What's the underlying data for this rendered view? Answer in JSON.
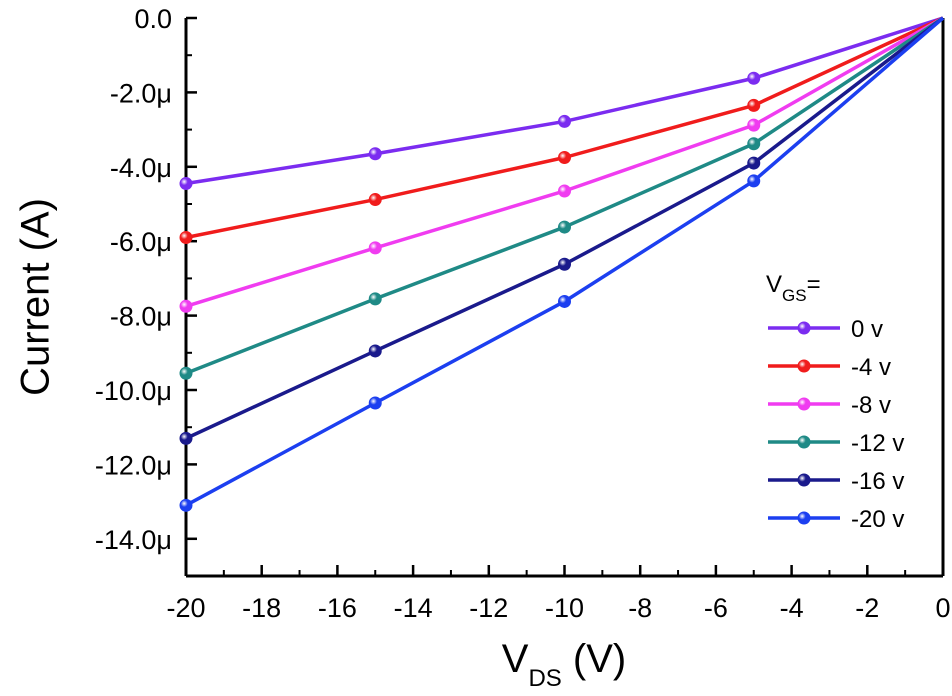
{
  "chart_data": {
    "type": "line",
    "xlabel_main": "V",
    "xlabel_sub": "DS",
    "xlabel_unit": " (V)",
    "ylabel": "Current (A)",
    "xlim": [
      -20,
      0
    ],
    "ylim": [
      -15.0,
      0.0
    ],
    "grid": false,
    "legend_position": "lower-right",
    "legend_title_main": "V",
    "legend_title_sub": "GS",
    "legend_title_suffix": "=",
    "x": [
      -20,
      -15,
      -10,
      -5,
      0
    ],
    "x_ticks": [
      -20,
      -18,
      -16,
      -14,
      -12,
      -10,
      -8,
      -6,
      -4,
      -2,
      0
    ],
    "x_tick_labels": [
      "-20",
      "-18",
      "-16",
      "-14",
      "-12",
      "-10",
      "-8",
      "-6",
      "-4",
      "-2",
      "0"
    ],
    "y_ticks": [
      0.0,
      -2.0,
      -4.0,
      -6.0,
      -8.0,
      -10.0,
      -12.0,
      -14.0
    ],
    "y_tick_labels": [
      "0.0",
      "-2.0μ",
      "-4.0μ",
      "-6.0μ",
      "-8.0μ",
      "-10.0μ",
      "-12.0μ",
      "-14.0μ"
    ],
    "y_unit": "μA",
    "series": [
      {
        "name": "0 v",
        "color": "#7b2cf0",
        "values": [
          -4.45,
          -3.65,
          -2.78,
          -1.62,
          0.0
        ]
      },
      {
        "name": "-4 v",
        "color": "#f01c1c",
        "values": [
          -5.9,
          -4.88,
          -3.75,
          -2.35,
          0.0
        ]
      },
      {
        "name": "-8 v",
        "color": "#f03cf0",
        "values": [
          -7.75,
          -6.18,
          -4.65,
          -2.88,
          0.0
        ]
      },
      {
        "name": "-12 v",
        "color": "#1f8a86",
        "values": [
          -9.55,
          -7.55,
          -5.62,
          -3.38,
          0.0
        ]
      },
      {
        "name": "-16 v",
        "color": "#1a1a8c",
        "values": [
          -11.3,
          -8.95,
          -6.62,
          -3.9,
          0.0
        ]
      },
      {
        "name": "-20 v",
        "color": "#1c3ff0",
        "values": [
          -13.1,
          -10.35,
          -7.62,
          -4.38,
          0.0
        ]
      }
    ]
  }
}
